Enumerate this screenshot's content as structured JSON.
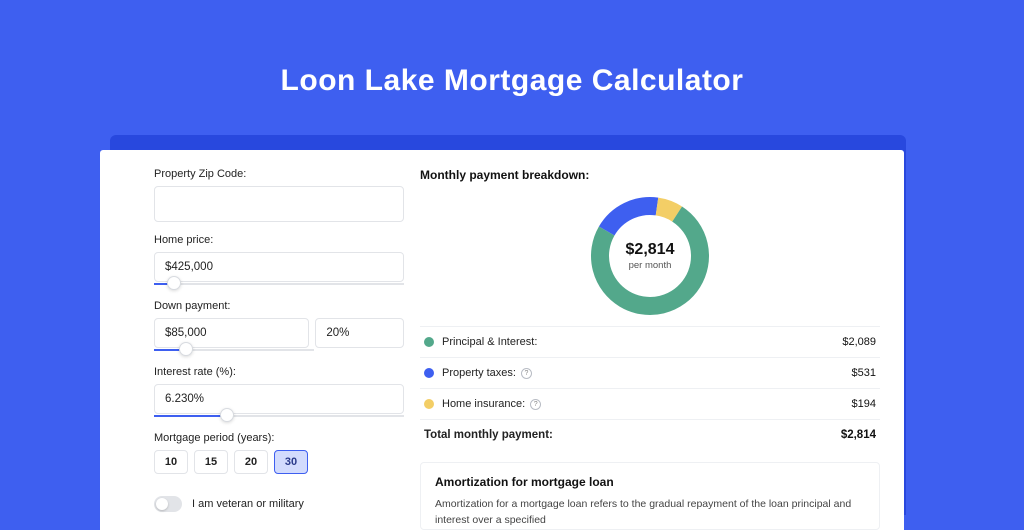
{
  "title": "Loon Lake Mortgage Calculator",
  "colors": {
    "page_bg": "#3e5ff0",
    "card_shadow": "#2848de",
    "card_bg": "#ffffff",
    "accent": "#3e5ff0",
    "border": "#e2e4e8",
    "text": "#222222"
  },
  "form": {
    "zip": {
      "label": "Property Zip Code:",
      "value": ""
    },
    "home_price": {
      "label": "Home price:",
      "value": "$425,000",
      "slider_pct": 8
    },
    "down_payment": {
      "label": "Down payment:",
      "value": "$85,000",
      "pct": "20%",
      "slider_pct": 20
    },
    "interest": {
      "label": "Interest rate (%):",
      "value": "6.230%",
      "slider_pct": 29
    },
    "period": {
      "label": "Mortgage period (years):",
      "options": [
        "10",
        "15",
        "20",
        "30"
      ],
      "selected": "30"
    },
    "veteran": {
      "label": "I am veteran or military",
      "checked": false
    }
  },
  "breakdown": {
    "title": "Monthly payment breakdown:",
    "donut": {
      "center_value": "$2,814",
      "center_sub": "per month",
      "slices": [
        {
          "key": "principal",
          "value": 2089,
          "pct": 74.2,
          "color": "#53a88b"
        },
        {
          "key": "taxes",
          "value": 531,
          "pct": 18.9,
          "color": "#3e5ff0"
        },
        {
          "key": "insurance",
          "value": 194,
          "pct": 6.9,
          "color": "#f3ce66"
        }
      ],
      "stroke_width": 18
    },
    "legend": [
      {
        "label": "Principal & Interest:",
        "value": "$2,089",
        "color": "#53a88b",
        "info": false
      },
      {
        "label": "Property taxes:",
        "value": "$531",
        "color": "#3e5ff0",
        "info": true
      },
      {
        "label": "Home insurance:",
        "value": "$194",
        "color": "#f3ce66",
        "info": true
      }
    ],
    "total": {
      "label": "Total monthly payment:",
      "value": "$2,814"
    }
  },
  "amortization": {
    "title": "Amortization for mortgage loan",
    "text": "Amortization for a mortgage loan refers to the gradual repayment of the loan principal and interest over a specified"
  }
}
